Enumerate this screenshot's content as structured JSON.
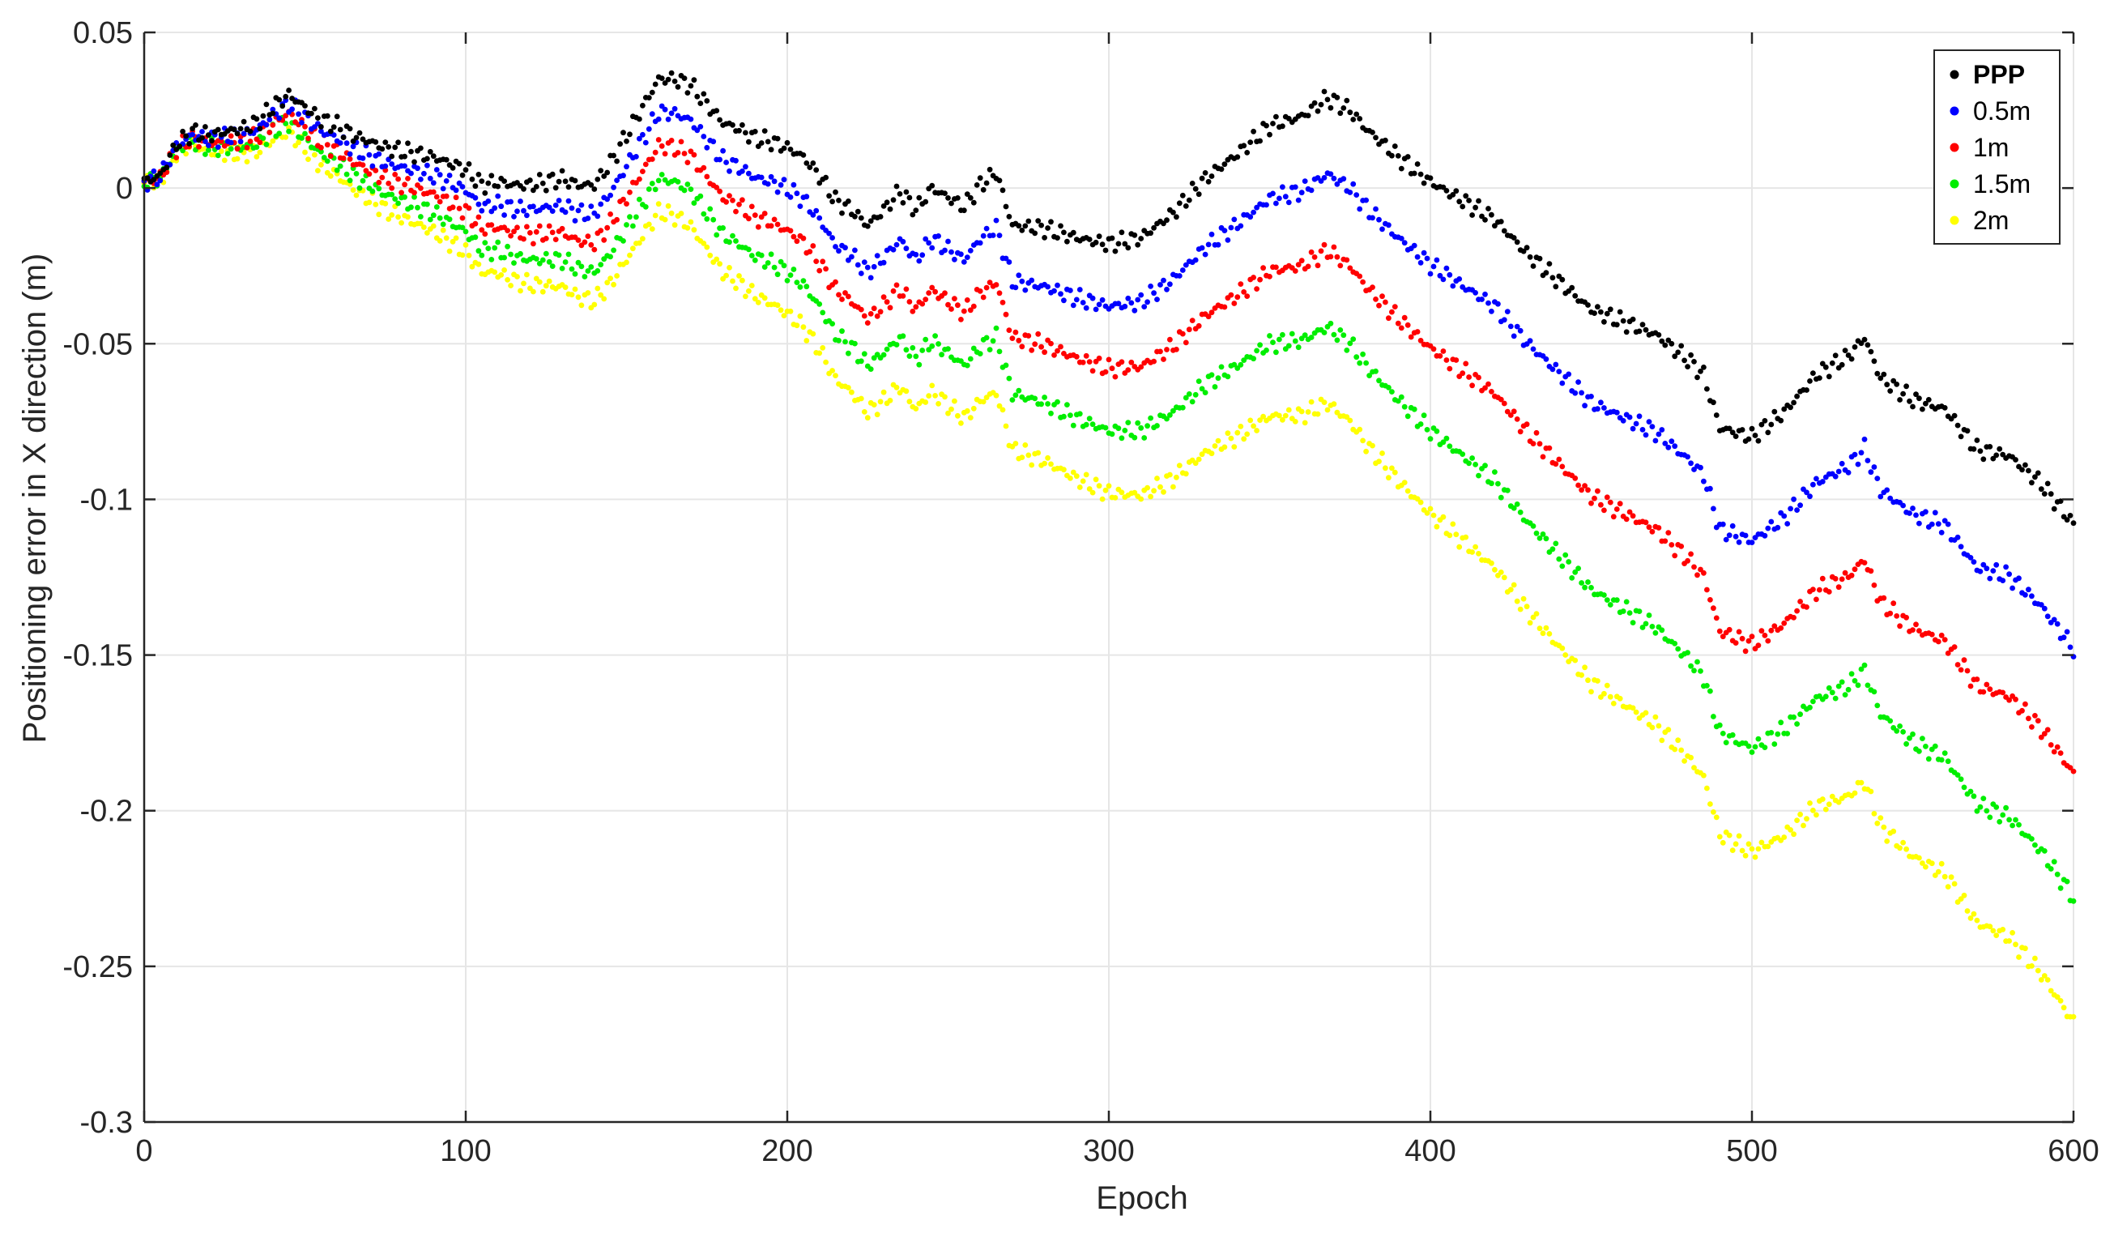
{
  "chart_data": {
    "type": "scatter",
    "xlabel": "Epoch",
    "ylabel": "Positioning error in X direction (m)",
    "xlim": [
      0,
      600
    ],
    "ylim": [
      -0.3,
      0.05
    ],
    "xticks": [
      0,
      100,
      200,
      300,
      400,
      500,
      600
    ],
    "xtick_labels": [
      "0",
      "100",
      "200",
      "300",
      "400",
      "500",
      "600"
    ],
    "yticks": [
      0.05,
      0,
      -0.05,
      -0.1,
      -0.15,
      -0.2,
      -0.25,
      -0.3
    ],
    "ytick_labels": [
      "0.05",
      "0",
      "-0.05",
      "-0.1",
      "-0.15",
      "-0.2",
      "-0.25",
      "-0.3"
    ],
    "grid": true,
    "legend_position": "top-right",
    "step": 1,
    "reference_x": [
      0,
      5,
      10,
      15,
      20,
      25,
      30,
      35,
      40,
      45,
      50,
      55,
      60,
      65,
      70,
      75,
      80,
      85,
      90,
      95,
      100,
      105,
      110,
      115,
      120,
      125,
      130,
      135,
      140,
      145,
      150,
      155,
      160,
      165,
      170,
      175,
      180,
      185,
      190,
      195,
      200,
      205,
      210,
      215,
      220,
      225,
      230,
      235,
      240,
      245,
      250,
      255,
      260,
      265,
      270,
      280,
      290,
      300,
      310,
      320,
      330,
      340,
      350,
      360,
      368,
      375,
      380,
      390,
      400,
      410,
      420,
      430,
      440,
      450,
      460,
      470,
      480,
      485,
      490,
      500,
      510,
      520,
      530,
      535,
      540,
      550,
      560,
      570,
      580,
      590,
      600
    ],
    "reference_y": [
      0.002,
      0.004,
      0.014,
      0.018,
      0.017,
      0.018,
      0.019,
      0.021,
      0.026,
      0.03,
      0.026,
      0.022,
      0.02,
      0.017,
      0.015,
      0.013,
      0.012,
      0.011,
      0.01,
      0.008,
      0.006,
      0.001,
      0.002,
      0.001,
      0.001,
      0.002,
      0.003,
      0.001,
      0.001,
      0.008,
      0.017,
      0.026,
      0.035,
      0.035,
      0.033,
      0.027,
      0.021,
      0.019,
      0.016,
      0.015,
      0.013,
      0.01,
      0.004,
      -0.004,
      -0.007,
      -0.012,
      -0.007,
      -0.001,
      -0.007,
      0.0,
      -0.003,
      -0.006,
      0.001,
      0.005,
      -0.012,
      -0.013,
      -0.016,
      -0.018,
      -0.016,
      -0.008,
      0.003,
      0.011,
      0.02,
      0.023,
      0.029,
      0.025,
      0.019,
      0.01,
      0.002,
      -0.004,
      -0.01,
      -0.021,
      -0.03,
      -0.039,
      -0.043,
      -0.047,
      -0.055,
      -0.06,
      -0.077,
      -0.08,
      -0.072,
      -0.06,
      -0.054,
      -0.048,
      -0.061,
      -0.068,
      -0.071,
      -0.084,
      -0.086,
      -0.095,
      -0.108
    ],
    "series": [
      {
        "name": "PPP",
        "color": "#000000",
        "offset": 0.0
      },
      {
        "name": "0.5m",
        "color": "#0000ff",
        "offset": -0.04
      },
      {
        "name": "1m",
        "color": "#ff0000",
        "offset": -0.08
      },
      {
        "name": "1.5m",
        "color": "#00ee00",
        "offset": -0.12
      },
      {
        "name": "2m",
        "color": "#ffff00",
        "offset": -0.16
      }
    ],
    "notes": "Each series follows the PPP curve; offsets grow linearly with epoch (about 0.0 at epoch 0 and the listed offset at epoch 600), so the curves fan out over time."
  }
}
